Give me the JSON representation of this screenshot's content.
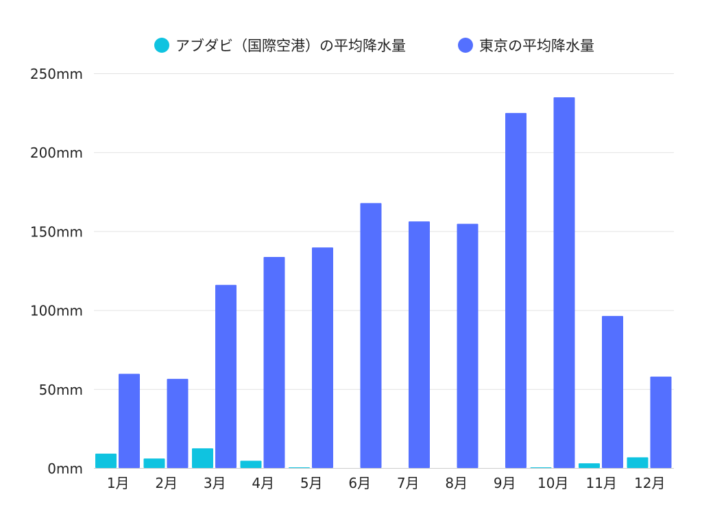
{
  "chart_data": {
    "type": "bar",
    "title": "",
    "xlabel": "",
    "ylabel": "",
    "categories": [
      "1月",
      "2月",
      "3月",
      "4月",
      "5月",
      "6月",
      "7月",
      "8月",
      "9月",
      "10月",
      "11月",
      "12月"
    ],
    "series": [
      {
        "name": "アブダビ（国際空港）の平均降水量",
        "color": "#0fc3e0",
        "values": [
          9.1,
          6.0,
          12.5,
          4.6,
          0.1,
          0,
          0,
          0,
          0,
          0.1,
          3.0,
          6.8
        ]
      },
      {
        "name": "東京の平均降水量",
        "color": "#5470ff",
        "values": [
          59.7,
          56.5,
          116.0,
          133.7,
          139.7,
          167.8,
          156.2,
          154.7,
          224.9,
          234.8,
          96.3,
          57.9
        ]
      }
    ],
    "ylim": [
      0,
      250
    ],
    "yticks": [
      0,
      50,
      100,
      150,
      200,
      250
    ],
    "ytick_labels": [
      "0mm",
      "50mm",
      "100mm",
      "150mm",
      "200mm",
      "250mm"
    ],
    "grid": true,
    "legend_position": "top-center"
  }
}
